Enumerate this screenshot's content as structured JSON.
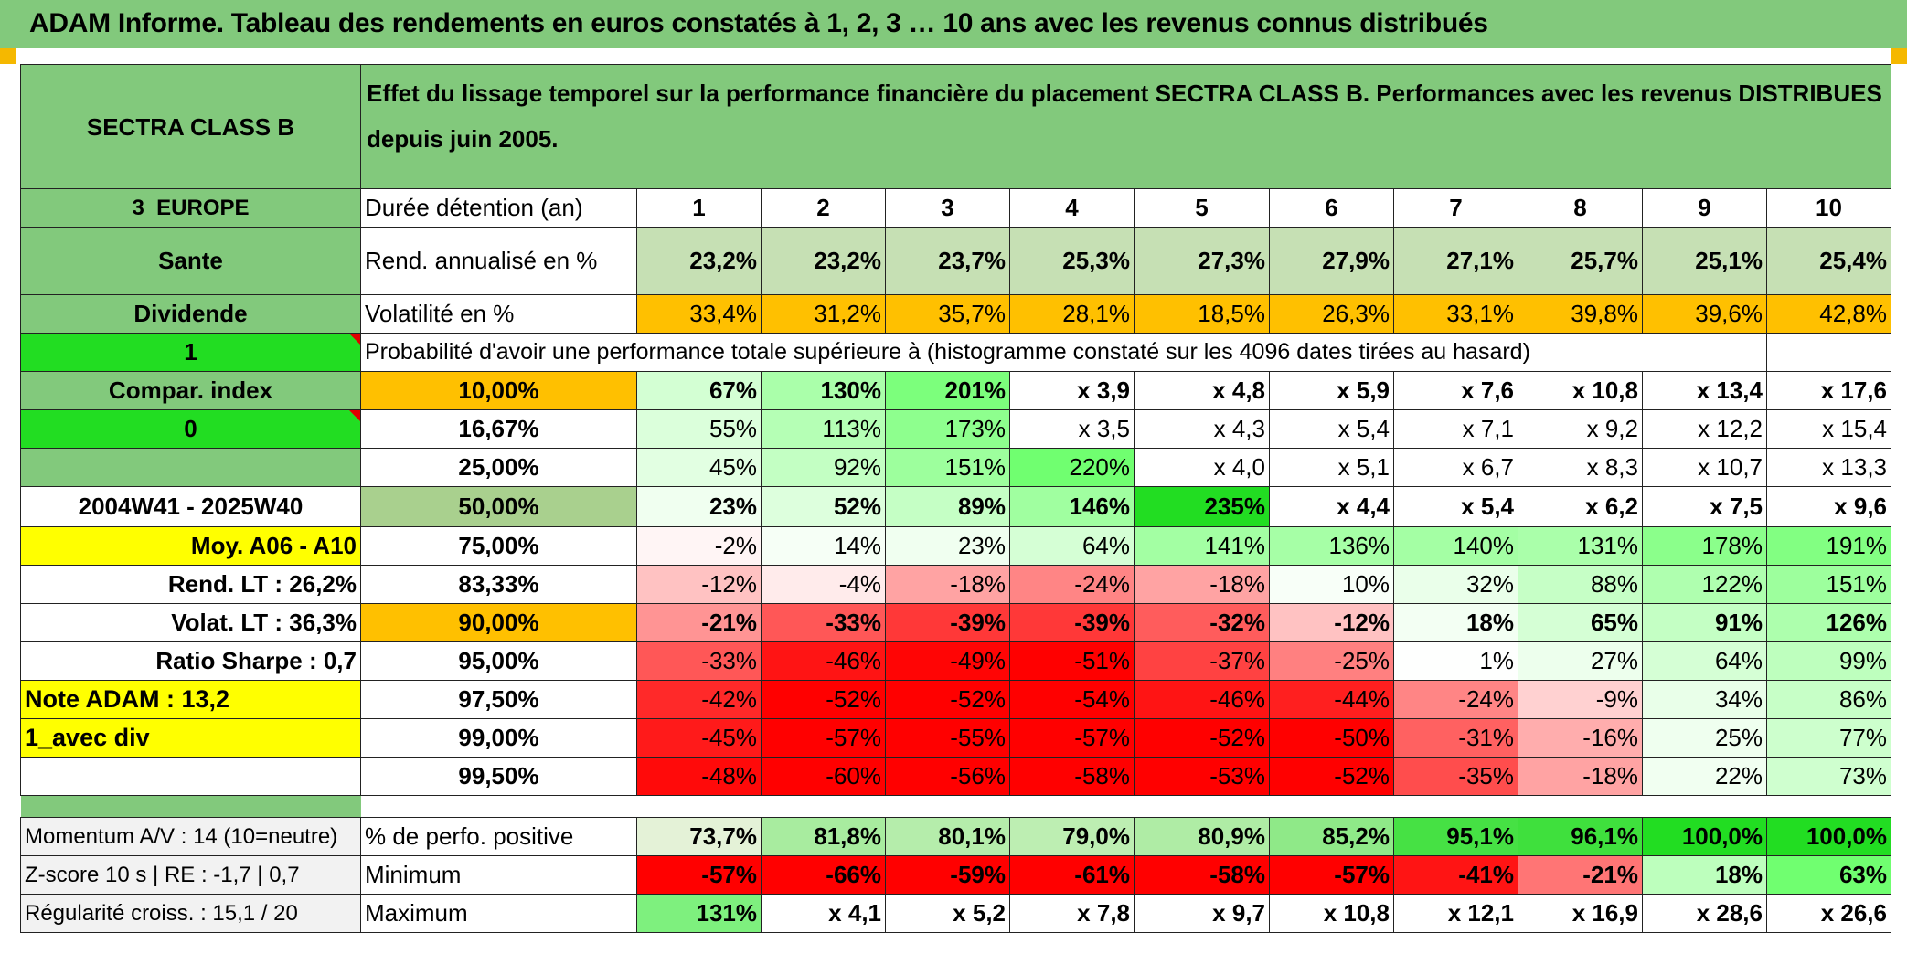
{
  "title": "ADAM Informe. Tableau des rendements en euros constatés à 1, 2, 3 … 10 ans avec les revenus connus distribués",
  "fund_name": "SECTRA CLASS B",
  "header_text": "Effet du lissage temporel sur la performance financière du placement SECTRA CLASS B. Performances avec les revenus DISTRIBUES depuis juin 2005.",
  "side": {
    "region": "3_EUROPE",
    "sector": "Sante",
    "type": "Dividende",
    "val1": "1",
    "compar_index": "Compar. index",
    "val0": "0",
    "period": "2004W41 - 2025W40",
    "moy": "Moy. A06 - A10",
    "rend_lt": "Rend. LT :    26,2%",
    "volat_lt": "Volat. LT :    36,3%",
    "sharpe": "Ratio Sharpe :    0,7",
    "note": "Note ADAM : 13,2",
    "avec_div": "1_avec div",
    "momentum": "Momentum A/V : 14 (10=neutre)",
    "zscore": "Z-score 10 s | RE : -1,7 | 0,7",
    "regularite": "Régularité croiss. : 15,1 / 20"
  },
  "labels": {
    "duree": "Durée détention (an)",
    "rend": "Rend. annualisé en %",
    "vol": "Volatilité en %",
    "proba": "Probabilité d'avoir une performance totale supérieure à (histogramme constaté sur les 4096 dates tirées au hasard)",
    "perf_pos": "% de perfo. positive",
    "minimum": "Minimum",
    "maximum": "Maximum"
  },
  "years": [
    "1",
    "2",
    "3",
    "4",
    "5",
    "6",
    "7",
    "8",
    "9",
    "10"
  ],
  "rend": [
    "23,2%",
    "23,2%",
    "23,7%",
    "25,3%",
    "27,3%",
    "27,9%",
    "27,1%",
    "25,7%",
    "25,1%",
    "25,4%"
  ],
  "vol": [
    "33,4%",
    "31,2%",
    "35,7%",
    "28,1%",
    "18,5%",
    "26,3%",
    "33,1%",
    "39,8%",
    "39,6%",
    "42,8%"
  ],
  "prob_rows": [
    {
      "pct": "10,00%",
      "vals": [
        "67%",
        "130%",
        "201%",
        "x 3,9",
        "x 4,8",
        "x 5,9",
        "x 7,6",
        "x 10,8",
        "x 13,4",
        "x 17,6"
      ]
    },
    {
      "pct": "16,67%",
      "vals": [
        "55%",
        "113%",
        "173%",
        "x 3,5",
        "x 4,3",
        "x 5,4",
        "x 7,1",
        "x 9,2",
        "x 12,2",
        "x 15,4"
      ]
    },
    {
      "pct": "25,00%",
      "vals": [
        "45%",
        "92%",
        "151%",
        "220%",
        "x 4,0",
        "x 5,1",
        "x 6,7",
        "x 8,3",
        "x 10,7",
        "x 13,3"
      ]
    },
    {
      "pct": "50,00%",
      "vals": [
        "23%",
        "52%",
        "89%",
        "146%",
        "235%",
        "x 4,4",
        "x 5,4",
        "x 6,2",
        "x 7,5",
        "x 9,6"
      ]
    },
    {
      "pct": "75,00%",
      "vals": [
        "-2%",
        "14%",
        "23%",
        "64%",
        "141%",
        "136%",
        "140%",
        "131%",
        "178%",
        "191%"
      ]
    },
    {
      "pct": "83,33%",
      "vals": [
        "-12%",
        "-4%",
        "-18%",
        "-24%",
        "-18%",
        "10%",
        "32%",
        "88%",
        "122%",
        "151%"
      ]
    },
    {
      "pct": "90,00%",
      "vals": [
        "-21%",
        "-33%",
        "-39%",
        "-39%",
        "-32%",
        "-12%",
        "18%",
        "65%",
        "91%",
        "126%"
      ]
    },
    {
      "pct": "95,00%",
      "vals": [
        "-33%",
        "-46%",
        "-49%",
        "-51%",
        "-37%",
        "-25%",
        "1%",
        "27%",
        "64%",
        "99%"
      ]
    },
    {
      "pct": "97,50%",
      "vals": [
        "-42%",
        "-52%",
        "-52%",
        "-54%",
        "-46%",
        "-44%",
        "-24%",
        "-9%",
        "34%",
        "86%"
      ]
    },
    {
      "pct": "99,00%",
      "vals": [
        "-45%",
        "-57%",
        "-55%",
        "-57%",
        "-52%",
        "-50%",
        "-31%",
        "-16%",
        "25%",
        "77%"
      ]
    },
    {
      "pct": "99,50%",
      "vals": [
        "-48%",
        "-60%",
        "-56%",
        "-58%",
        "-53%",
        "-52%",
        "-35%",
        "-18%",
        "22%",
        "73%"
      ]
    }
  ],
  "perf_pos": [
    "73,7%",
    "81,8%",
    "80,1%",
    "79,0%",
    "80,9%",
    "85,2%",
    "95,1%",
    "96,1%",
    "100,0%",
    "100,0%"
  ],
  "minimum": [
    "-57%",
    "-66%",
    "-59%",
    "-61%",
    "-58%",
    "-57%",
    "-41%",
    "-21%",
    "18%",
    "63%"
  ],
  "maximum": [
    "131%",
    "x 4,1",
    "x 5,2",
    "x 7,8",
    "x 9,7",
    "x 10,8",
    "x 12,1",
    "x 16,9",
    "x 28,6",
    "x 26,6"
  ],
  "colors": {
    "header_green": "#82c97c",
    "bright_green": "#22dd22",
    "yellow": "#ffff00",
    "orange": "#ffc000",
    "rend_bg": "#c6e0b4",
    "pct50_bg": "#a9d08e",
    "red_text": "#d00000"
  }
}
